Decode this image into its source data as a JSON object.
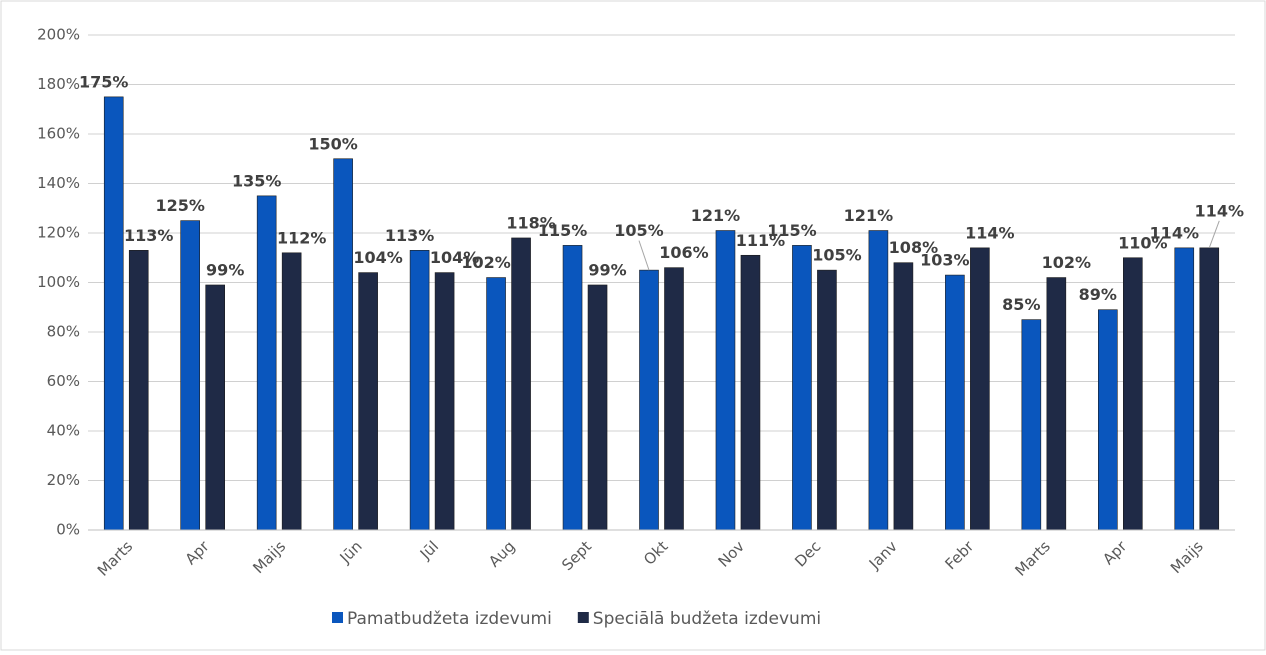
{
  "chart_data": {
    "type": "bar",
    "categories": [
      "Marts",
      "Apr",
      "Maijs",
      "Jūn",
      "Jūl",
      "Aug",
      "Sept",
      "Okt",
      "Nov",
      "Dec",
      "Janv",
      "Febr",
      "Marts",
      "Apr",
      "Maijs"
    ],
    "series": [
      {
        "name": "Pamatbudžeta izdevumi",
        "color": "#0a56bd",
        "values": [
          175,
          125,
          135,
          150,
          113,
          102,
          115,
          105,
          121,
          115,
          121,
          103,
          85,
          89,
          114
        ],
        "value_labels": [
          "175%",
          "125%",
          "135%",
          "150%",
          "113%",
          "102%",
          "115%",
          "105%",
          "121%",
          "115%",
          "121%",
          "103%",
          "85%",
          "89%",
          "114%"
        ]
      },
      {
        "name": "Speciālā budžeta izdevumi",
        "color": "#1f2a46",
        "values": [
          113,
          99,
          112,
          104,
          104,
          118,
          99,
          106,
          111,
          105,
          108,
          114,
          102,
          110,
          114
        ],
        "value_labels": [
          "113%",
          "99%",
          "112%",
          "104%",
          "104%",
          "118%",
          "99%",
          "106%",
          "111%",
          "105%",
          "108%",
          "114%",
          "102%",
          "110%",
          "114%"
        ]
      }
    ],
    "ylim": [
      0,
      200
    ],
    "yticks": [
      {
        "value": 0,
        "label": "0%"
      },
      {
        "value": 20,
        "label": "20%"
      },
      {
        "value": 40,
        "label": "40%"
      },
      {
        "value": 60,
        "label": "60%"
      },
      {
        "value": 80,
        "label": "80%"
      },
      {
        "value": 100,
        "label": "100%"
      },
      {
        "value": 120,
        "label": "120%"
      },
      {
        "value": 140,
        "label": "140%"
      },
      {
        "value": 160,
        "label": "160%"
      },
      {
        "value": 180,
        "label": "180%"
      },
      {
        "value": 200,
        "label": "200%"
      }
    ],
    "grid": true,
    "legend": "bottom"
  }
}
